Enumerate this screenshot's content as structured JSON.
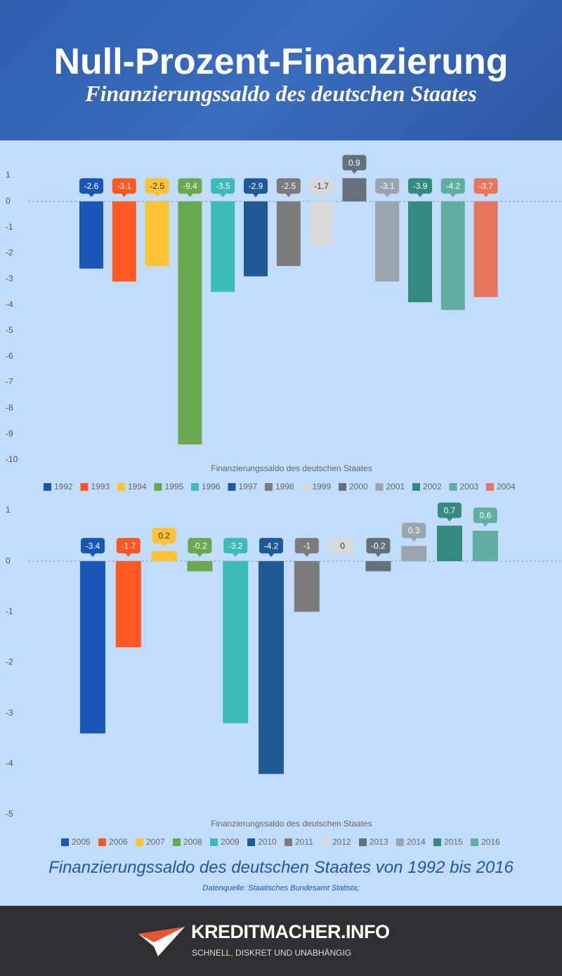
{
  "header": {
    "title": "Null-Prozent-Finanzierung",
    "subtitle": "Finanzierungssaldo des deutschen Staates"
  },
  "chart_data": [
    {
      "type": "bar",
      "title": "Finanzierungssaldo des deutschen Staates",
      "categories": [
        "1992",
        "1993",
        "1994",
        "1995",
        "1996",
        "1997",
        "1998",
        "1999",
        "2000",
        "2001",
        "2002",
        "2003",
        "2004"
      ],
      "values": [
        -2.6,
        -3.1,
        -2.5,
        -9.4,
        -3.5,
        -2.9,
        -2.5,
        -1.7,
        0.9,
        -3.1,
        -3.9,
        -4.2,
        -3.7
      ],
      "colors": [
        "#1a56b8",
        "#ff5722",
        "#ffc233",
        "#6aa84f",
        "#3bbcb8",
        "#1f5a96",
        "#7b7b7b",
        "#d9d9d9",
        "#63727a",
        "#9aa5ad",
        "#348a7e",
        "#5fae9f",
        "#e8765e"
      ],
      "ylim": [
        -10,
        1
      ],
      "yticks": [
        -10,
        -9,
        -8,
        -7,
        -6,
        -5,
        -4,
        -3,
        -2,
        -1,
        0,
        1
      ]
    },
    {
      "type": "bar",
      "title": "Finanzierungssaldo des deutschen Staates",
      "categories": [
        "2005",
        "2006",
        "2007",
        "2008",
        "2009",
        "2010",
        "2011",
        "2012",
        "2013",
        "2014",
        "2015",
        "2016"
      ],
      "values": [
        -3.4,
        -1.7,
        0.2,
        -0.2,
        -3.2,
        -4.2,
        -1,
        0,
        -0.2,
        0.3,
        0.7,
        0.6
      ],
      "colors": [
        "#1a56b8",
        "#ff5722",
        "#ffc233",
        "#6aa84f",
        "#3bbcb8",
        "#1f5a96",
        "#7b7b7b",
        "#d9d9d9",
        "#63727a",
        "#9aa5ad",
        "#348a7e",
        "#5fae9f"
      ],
      "ylim": [
        -5,
        1
      ],
      "yticks": [
        -5,
        -4,
        -3,
        -2,
        -1,
        0,
        1
      ]
    }
  ],
  "footer": {
    "caption": "Finanzierungssaldo des deutschen Staates von 1992 bis 2016",
    "source": "Datenquelle: Staatisches Bundesamt Statista;",
    "brand": "KREDITMACHER.INFO",
    "slogan": "SCHNELL, DISKRET UND UNABHÄNGIG"
  }
}
